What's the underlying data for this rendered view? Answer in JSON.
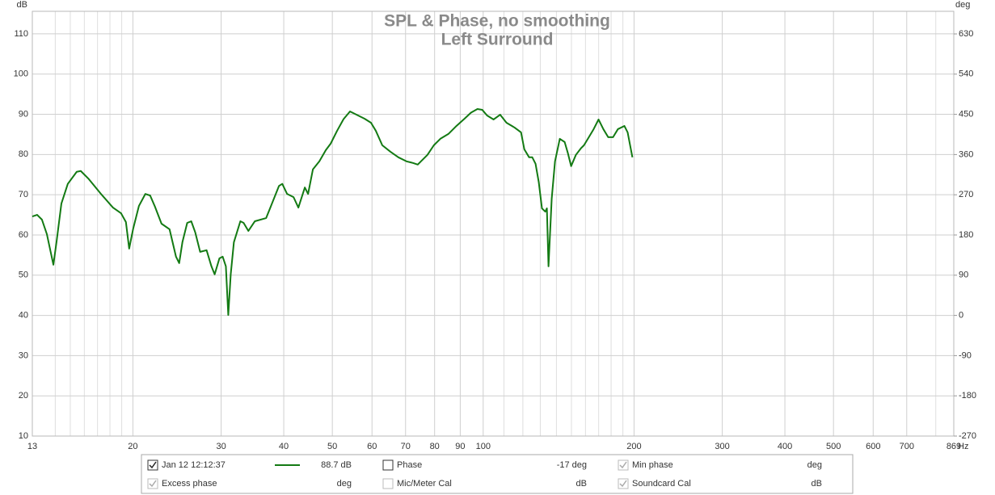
{
  "chart_data": {
    "type": "line",
    "title": "SPL & Phase, no smoothing",
    "subtitle": "Left Surround",
    "ylabel": "dB",
    "y2label": "deg",
    "xlabel": "Hz",
    "xlog": true,
    "grid": true,
    "xlim": [
      12.6,
      869
    ],
    "ylim": [
      10,
      115.6
    ],
    "y2lim": [
      -270,
      680.6
    ],
    "xticks": [
      {
        "value": 12.6,
        "label": "13"
      },
      20,
      30,
      40,
      50,
      60,
      70,
      80,
      90,
      100,
      200,
      300,
      400,
      500,
      600,
      700,
      869
    ],
    "minor_xgrid": [
      14,
      15,
      16,
      17,
      18,
      19,
      110,
      120,
      130,
      140,
      150,
      160,
      170,
      180,
      190,
      800
    ],
    "yticks": [
      10,
      20,
      30,
      40,
      50,
      60,
      70,
      80,
      90,
      100,
      110
    ],
    "y2ticks": [
      -270,
      -180,
      -90,
      0,
      90,
      180,
      270,
      360,
      450,
      540,
      630
    ],
    "x": [
      12.6,
      12.88,
      13.17,
      13.47,
      13.88,
      14.08,
      14.4,
      14.83,
      15.45,
      15.74,
      16.33,
      17.27,
      18.25,
      18.94,
      19.37,
      19.66,
      20.03,
      20.56,
      21.18,
      21.65,
      22.14,
      22.81,
      23.67,
      24.38,
      24.74,
      25.11,
      25.67,
      26.15,
      26.64,
      27.24,
      28.06,
      28.69,
      29.12,
      29.77,
      30.21,
      30.66,
      31.0,
      31.35,
      31.81,
      32.77,
      33.26,
      34.0,
      35.02,
      36.89,
      37.72,
      39.14,
      39.73,
      40.62,
      41.84,
      42.78,
      44.07,
      44.73,
      45.73,
      47.11,
      48.53,
      49.62,
      51.11,
      52.65,
      54.23,
      55.87,
      57.98,
      59.72,
      61.06,
      62.9,
      65.27,
      67.73,
      70.29,
      72.41,
      74.03,
      75.13,
      77.4,
      79.72,
      82.12,
      85.22,
      88.44,
      91.78,
      94.55,
      97.39,
      99.58,
      101.8,
      104.9,
      108.1,
      111.3,
      115.5,
      119.0,
      120.8,
      123.5,
      125.3,
      127.2,
      129.1,
      131.0,
      133.0,
      134.0,
      135.0,
      137.0,
      139.1,
      142.2,
      145.4,
      147.6,
      149.8,
      153.1,
      156.6,
      158.9,
      162.5,
      166.1,
      169.9,
      173.7,
      177.6,
      181.6,
      185.7,
      191.3,
      194.2,
      198.5
    ],
    "series": [
      {
        "name": "Jan 12 12:12:37",
        "readout": "88.7 dB",
        "checked": true,
        "color": "#137a13",
        "values": [
          64.6,
          65.0,
          63.8,
          60.2,
          52.6,
          58.2,
          67.8,
          72.7,
          75.7,
          75.9,
          73.9,
          70.2,
          66.8,
          65.4,
          63.2,
          56.6,
          61.6,
          67.2,
          70.2,
          69.8,
          67.0,
          62.8,
          61.4,
          54.6,
          53.0,
          58.2,
          63.0,
          63.4,
          60.6,
          55.8,
          56.2,
          52.2,
          50.2,
          54.2,
          54.6,
          52.2,
          40.1,
          50.2,
          58.2,
          63.4,
          63.0,
          61.0,
          63.4,
          64.2,
          67.2,
          72.2,
          72.7,
          70.2,
          69.4,
          66.8,
          71.8,
          70.2,
          76.3,
          78.3,
          81.1,
          82.7,
          85.9,
          88.8,
          90.7,
          89.9,
          88.9,
          87.9,
          85.9,
          82.3,
          80.7,
          79.3,
          78.3,
          77.9,
          77.5,
          78.3,
          79.9,
          82.3,
          83.9,
          85.1,
          87.1,
          88.9,
          90.4,
          91.3,
          91.1,
          89.7,
          88.7,
          89.9,
          87.9,
          86.7,
          85.5,
          81.3,
          79.3,
          79.3,
          77.7,
          73.1,
          66.6,
          65.8,
          66.6,
          52.2,
          69.0,
          78.3,
          83.9,
          83.1,
          80.3,
          77.1,
          79.9,
          81.5,
          82.3,
          84.3,
          86.3,
          88.7,
          86.3,
          84.3,
          84.3,
          86.3,
          87.1,
          85.5,
          79.3
        ]
      }
    ]
  },
  "legend": {
    "items": [
      {
        "label": "Phase",
        "readout": "-17 deg",
        "checked": false,
        "enabled": true
      },
      {
        "label": "Min phase",
        "readout": "deg",
        "checked": true,
        "enabled": false
      },
      {
        "label": "Excess phase",
        "readout": "deg",
        "checked": true,
        "enabled": false
      },
      {
        "label": "Mic/Meter Cal",
        "readout": "dB",
        "checked": false,
        "enabled": false
      },
      {
        "label": "Soundcard Cal",
        "readout": "dB",
        "checked": true,
        "enabled": false
      }
    ]
  }
}
